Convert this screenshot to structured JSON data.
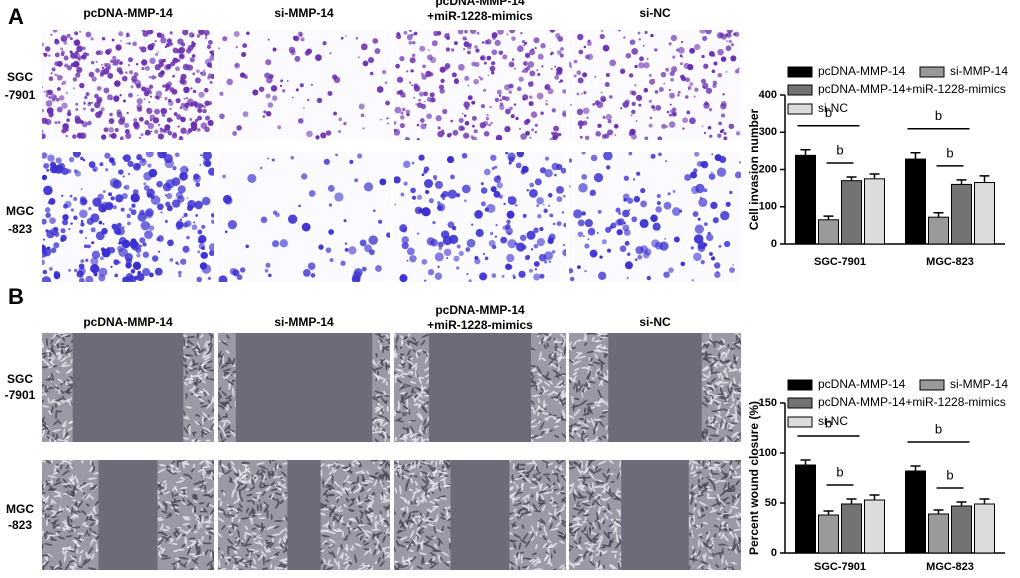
{
  "panels": [
    {
      "label": "A",
      "columns": [
        [
          "pcDNA-MMP-14"
        ],
        [
          "si-MMP-14"
        ],
        [
          "pcDNA-MMP-14",
          "+miR-1228-mimics"
        ],
        [
          "si-NC"
        ]
      ],
      "rows": [
        [
          "SGC",
          "-7901"
        ],
        [
          "MGC",
          "-823"
        ]
      ]
    },
    {
      "label": "B",
      "columns": [
        [
          "pcDNA-MMP-14"
        ],
        [
          "si-MMP-14"
        ],
        [
          "pcDNA-MMP-14",
          "+miR-1228-mimics"
        ],
        [
          "si-NC"
        ]
      ],
      "rows": [
        [
          "SGC",
          "-7901"
        ],
        [
          "MGC",
          "-823"
        ]
      ]
    }
  ],
  "chart_data": [
    {
      "type": "bar",
      "y_label": "Cell invasion number",
      "categories": [
        "SGC-7901",
        "MGC-823"
      ],
      "series": [
        {
          "name": "pcDNA-MMP-14",
          "color": "#000000",
          "values": [
            238,
            228
          ],
          "errors": [
            15,
            17
          ]
        },
        {
          "name": "si-MMP-14",
          "color": "#9a9a9a",
          "values": [
            65,
            72
          ],
          "errors": [
            10,
            12
          ]
        },
        {
          "name": "pcDNA-MMP-14+miR-1228-mimics",
          "color": "#737373",
          "values": [
            170,
            160
          ],
          "errors": [
            10,
            12
          ]
        },
        {
          "name": "si-NC",
          "color": "#dcdcdc",
          "values": [
            175,
            165
          ],
          "errors": [
            13,
            18
          ]
        }
      ],
      "ylim": [
        0,
        400
      ],
      "yticks": [
        0,
        100,
        200,
        300,
        400
      ],
      "annotations": [
        "b",
        "b",
        "b",
        "b"
      ]
    },
    {
      "type": "bar",
      "y_label": "Percent wound closure (%)",
      "categories": [
        "SGC-7901",
        "MGC-823"
      ],
      "series": [
        {
          "name": "pcDNA-MMP-14",
          "color": "#000000",
          "values": [
            88,
            82
          ],
          "errors": [
            5,
            5
          ]
        },
        {
          "name": "si-MMP-14",
          "color": "#9a9a9a",
          "values": [
            38,
            39
          ],
          "errors": [
            4,
            4
          ]
        },
        {
          "name": "pcDNA-MMP-14+miR-1228-mimics",
          "color": "#737373",
          "values": [
            49,
            47
          ],
          "errors": [
            5,
            4
          ]
        },
        {
          "name": "si-NC",
          "color": "#dcdcdc",
          "values": [
            53,
            49
          ],
          "errors": [
            5,
            5
          ]
        }
      ],
      "ylim": [
        0,
        150
      ],
      "yticks": [
        0,
        50,
        100,
        150
      ],
      "annotations": [
        "b",
        "b",
        "b",
        "b"
      ]
    }
  ]
}
